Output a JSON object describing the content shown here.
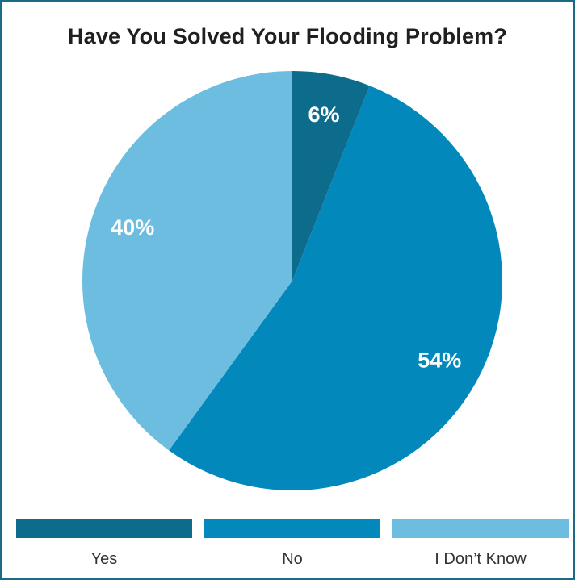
{
  "chart_data": {
    "type": "pie",
    "title": "Have You Solved Your Flooding Problem?",
    "slices": [
      {
        "label": "Yes",
        "value": 6,
        "display": "6%",
        "color": "#0d6b8c"
      },
      {
        "label": "No",
        "value": 54,
        "display": "54%",
        "color": "#0388bb"
      },
      {
        "label": "I Don’t Know",
        "value": 40,
        "display": "40%",
        "color": "#6cbde0"
      }
    ],
    "legend_position": "bottom"
  }
}
